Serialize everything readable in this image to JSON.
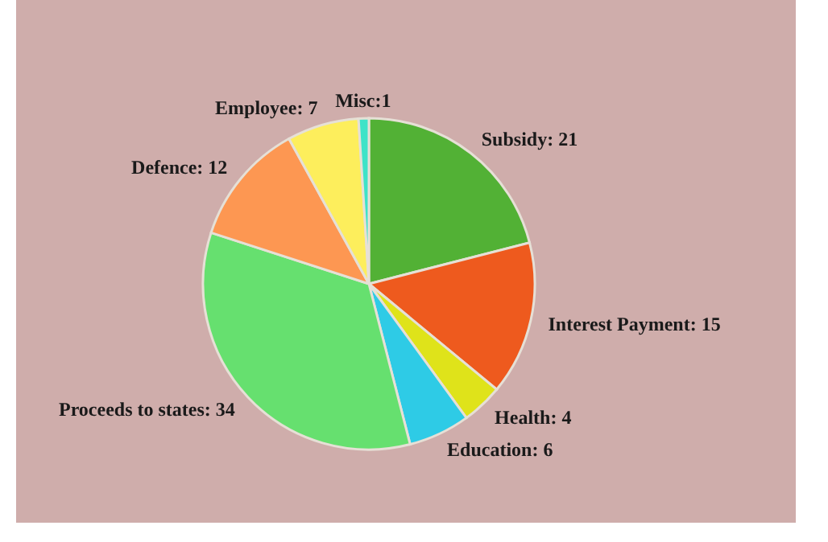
{
  "chart_data": {
    "type": "pie",
    "categories": [
      "Subsidy",
      "Interest Payment",
      "Health",
      "Education",
      "Proceeds to states",
      "Defence",
      "Employee",
      "Misc"
    ],
    "values": [
      21,
      15,
      4,
      6,
      34,
      12,
      7,
      1
    ],
    "colors": [
      "#52b135",
      "#ee5a1e",
      "#dfe31a",
      "#2ecbe6",
      "#66e06f",
      "#fd9752",
      "#fdee5c",
      "#3ee3c8"
    ],
    "value_labels": [
      ": 21",
      ": 15",
      ": 4",
      ": 6",
      ": 34",
      ": 12",
      ": 7",
      ":1"
    ]
  }
}
